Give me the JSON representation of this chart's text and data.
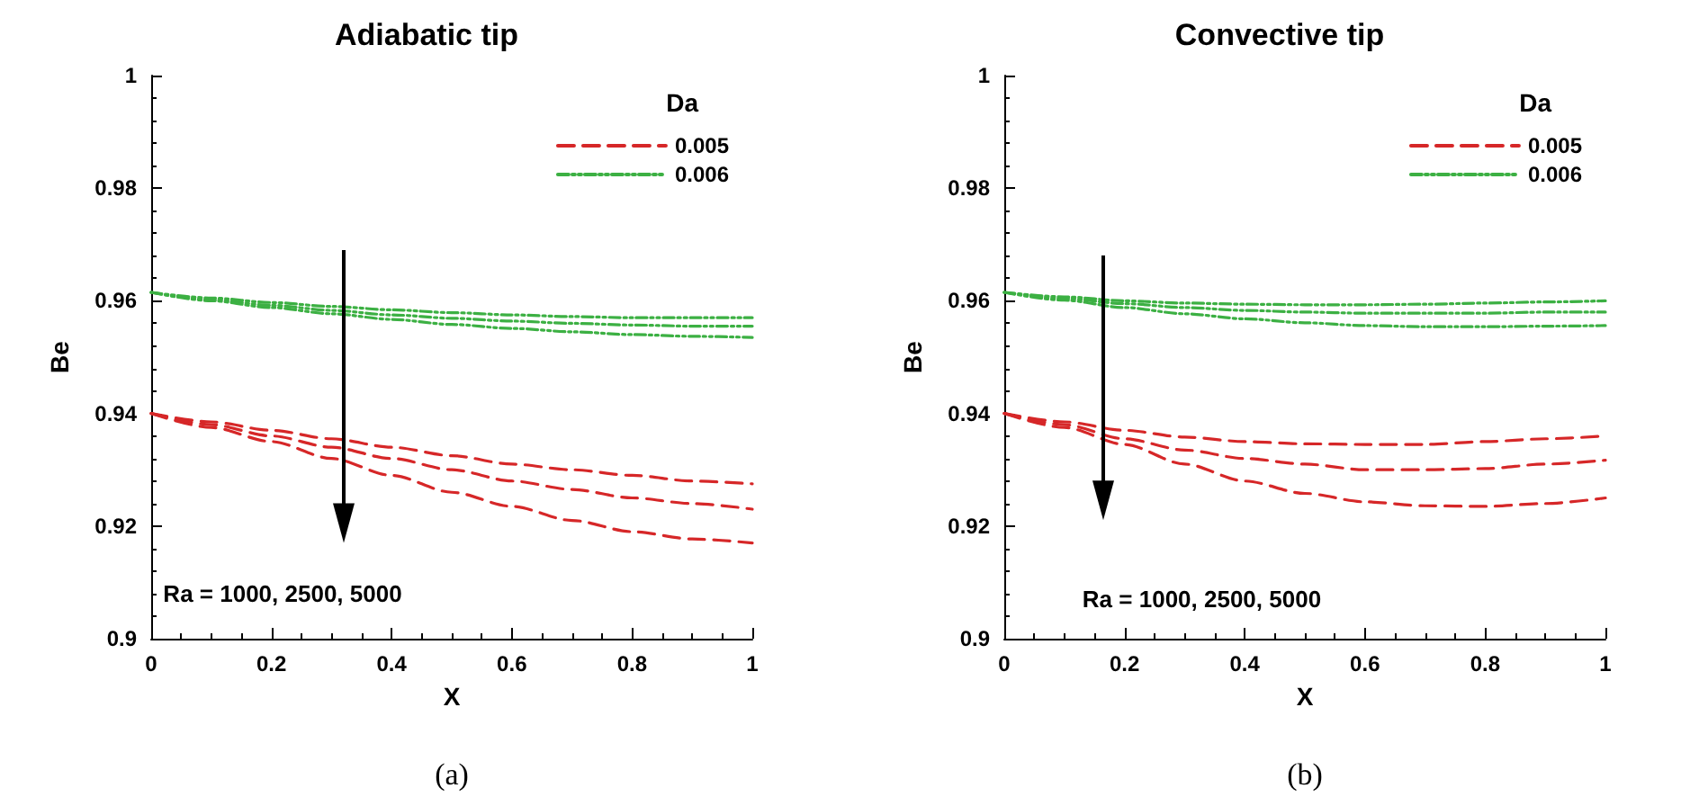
{
  "chart_data": [
    {
      "type": "line",
      "title": "Adiabatic tip",
      "xlabel": "X",
      "ylabel": "Be",
      "legend_title": "Da",
      "legend": "top right",
      "grid": false,
      "marker": "none",
      "x": [
        0,
        0.1,
        0.2,
        0.3,
        0.4,
        0.5,
        0.6,
        0.7,
        0.8,
        0.9,
        1
      ],
      "xlim": [
        0,
        1
      ],
      "xticks": [
        0,
        0.2,
        0.4,
        0.6,
        0.8,
        1
      ],
      "ylim": [
        0.9,
        1
      ],
      "yticks": [
        0.9,
        0.92,
        0.94,
        0.96,
        0.98,
        1
      ],
      "annotations": [
        "Ra = 1000, 2500, 5000",
        "(a)"
      ],
      "series": [
        {
          "name": "0.005",
          "color": "#d62728",
          "line_style": "dashed",
          "values": [
            0.94,
            0.9385,
            0.937,
            0.9355,
            0.934,
            0.9325,
            0.931,
            0.93,
            0.929,
            0.928,
            0.9275
          ]
        },
        {
          "color": "#d62728",
          "line_style": "dashed",
          "values": [
            0.94,
            0.938,
            0.936,
            0.934,
            0.932,
            0.93,
            0.928,
            0.9265,
            0.925,
            0.924,
            0.923
          ]
        },
        {
          "color": "#d62728",
          "line_style": "dashed",
          "values": [
            0.94,
            0.9375,
            0.935,
            0.932,
            0.929,
            0.926,
            0.9235,
            0.921,
            0.919,
            0.9177,
            0.917
          ]
        },
        {
          "name": "0.006",
          "color": "#3cb043",
          "line_style": "dotted",
          "values": [
            0.9615,
            0.9605,
            0.9597,
            0.959,
            0.9584,
            0.9579,
            0.9575,
            0.9572,
            0.957,
            0.957,
            0.957
          ]
        },
        {
          "color": "#3cb043",
          "line_style": "dotted",
          "values": [
            0.9615,
            0.9602,
            0.9592,
            0.9583,
            0.9575,
            0.9569,
            0.9564,
            0.956,
            0.9557,
            0.9555,
            0.9555
          ]
        },
        {
          "color": "#3cb043",
          "line_style": "dotted",
          "values": [
            0.9615,
            0.96,
            0.9588,
            0.9577,
            0.9567,
            0.9558,
            0.9551,
            0.9545,
            0.954,
            0.9537,
            0.9535
          ]
        }
      ]
    },
    {
      "type": "line",
      "title": "Convective tip",
      "xlabel": "X",
      "ylabel": "Be",
      "legend_title": "Da",
      "legend": "top right",
      "grid": false,
      "marker": "none",
      "x": [
        0,
        0.1,
        0.2,
        0.3,
        0.4,
        0.5,
        0.6,
        0.7,
        0.8,
        0.9,
        1
      ],
      "xlim": [
        0,
        1
      ],
      "xticks": [
        0,
        0.2,
        0.4,
        0.6,
        0.8,
        1
      ],
      "ylim": [
        0.9,
        1
      ],
      "yticks": [
        0.9,
        0.92,
        0.94,
        0.96,
        0.98,
        1
      ],
      "annotations": [
        "Ra = 1000, 2500, 5000",
        "(b)"
      ],
      "series": [
        {
          "name": "0.005",
          "color": "#d62728",
          "line_style": "dashed",
          "values": [
            0.94,
            0.9385,
            0.937,
            0.9358,
            0.935,
            0.9346,
            0.9345,
            0.9345,
            0.935,
            0.9355,
            0.936
          ]
        },
        {
          "color": "#d62728",
          "line_style": "dashed",
          "values": [
            0.94,
            0.938,
            0.9355,
            0.9335,
            0.932,
            0.931,
            0.93,
            0.93,
            0.9302,
            0.931,
            0.9317
          ]
        },
        {
          "color": "#d62728",
          "line_style": "dashed",
          "values": [
            0.94,
            0.9375,
            0.9345,
            0.931,
            0.928,
            0.9258,
            0.9243,
            0.9236,
            0.9235,
            0.924,
            0.925
          ]
        },
        {
          "name": "0.006",
          "color": "#3cb043",
          "line_style": "dotted",
          "values": [
            0.9615,
            0.9607,
            0.96,
            0.9596,
            0.9594,
            0.9593,
            0.9593,
            0.9594,
            0.9596,
            0.9598,
            0.96
          ]
        },
        {
          "color": "#3cb043",
          "line_style": "dotted",
          "values": [
            0.9615,
            0.9604,
            0.9595,
            0.9588,
            0.9583,
            0.958,
            0.9578,
            0.9578,
            0.9578,
            0.958,
            0.958
          ]
        },
        {
          "color": "#3cb043",
          "line_style": "dotted",
          "values": [
            0.9615,
            0.9601,
            0.9588,
            0.9577,
            0.9568,
            0.9561,
            0.9556,
            0.9554,
            0.9554,
            0.9555,
            0.9556
          ]
        }
      ]
    }
  ]
}
